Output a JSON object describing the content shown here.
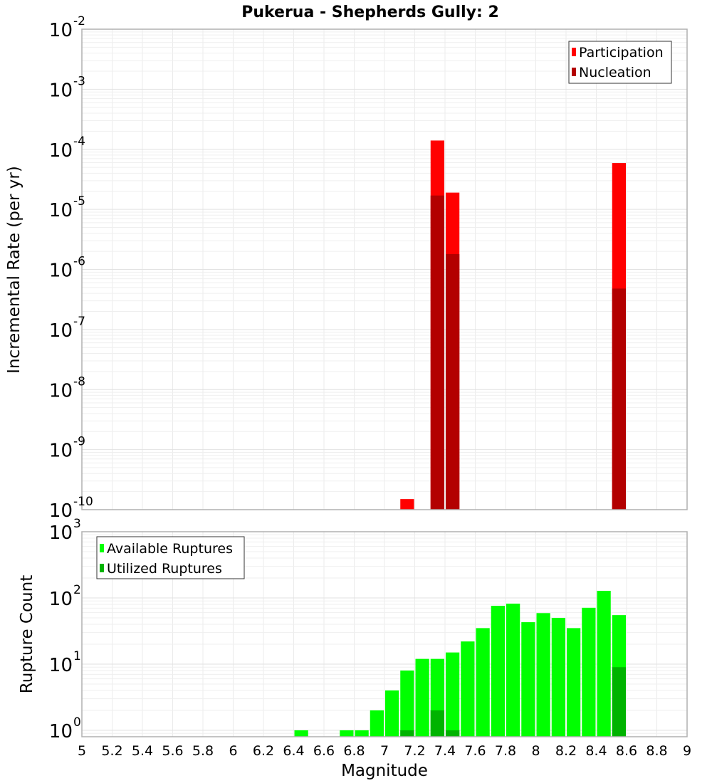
{
  "chart_data": [
    {
      "type": "bar",
      "title": "Pukerua - Shepherds Gully: 2",
      "xlabel": "Magnitude",
      "ylabel": "Incremental Rate (per yr)",
      "yscale": "log",
      "xlim": [
        5,
        9
      ],
      "ylim": [
        1e-10,
        0.01
      ],
      "grid": true,
      "legend_position": "upper right",
      "bin_width": 0.1,
      "yticks": [
        {
          "base": "10",
          "exp": "-2",
          "value": 0.01
        },
        {
          "base": "10",
          "exp": "-3",
          "value": 0.001
        },
        {
          "base": "10",
          "exp": "-4",
          "value": 0.0001
        },
        {
          "base": "10",
          "exp": "-5",
          "value": 1e-05
        },
        {
          "base": "10",
          "exp": "-6",
          "value": 1e-06
        },
        {
          "base": "10",
          "exp": "-7",
          "value": 1e-07
        },
        {
          "base": "10",
          "exp": "-8",
          "value": 1e-08
        },
        {
          "base": "10",
          "exp": "-9",
          "value": 1e-09
        },
        {
          "base": "10",
          "exp": "-10",
          "value": 1e-10
        }
      ],
      "series": [
        {
          "name": "Participation",
          "color": "#ff0000",
          "x": [
            7.15,
            7.35,
            7.45,
            8.55
          ],
          "values": [
            1.5e-10,
            0.00014,
            1.9e-05,
            5.9e-05
          ]
        },
        {
          "name": "Nucleation",
          "color": "#b30000",
          "x": [
            7.35,
            7.45,
            8.55
          ],
          "values": [
            1.7e-05,
            1.8e-06,
            4.8e-07
          ]
        }
      ]
    },
    {
      "type": "bar",
      "title": "",
      "xlabel": "Magnitude",
      "ylabel": "Rupture Count",
      "yscale": "log",
      "xlim": [
        5,
        9
      ],
      "ylim": [
        0.8,
        1000
      ],
      "grid": true,
      "legend_position": "upper left",
      "bin_width": 0.1,
      "yticks": [
        {
          "base": "10",
          "exp": "3",
          "value": 1000
        },
        {
          "base": "10",
          "exp": "2",
          "value": 100
        },
        {
          "base": "10",
          "exp": "1",
          "value": 10
        },
        {
          "base": "10",
          "exp": "0",
          "value": 1
        }
      ],
      "series": [
        {
          "name": "Available Ruptures",
          "color": "#00ff00",
          "x": [
            6.45,
            6.75,
            6.85,
            6.95,
            7.05,
            7.15,
            7.25,
            7.35,
            7.45,
            7.55,
            7.65,
            7.75,
            7.85,
            7.95,
            8.05,
            8.15,
            8.25,
            8.35,
            8.45,
            8.55
          ],
          "values": [
            1,
            1,
            1,
            2,
            4,
            8,
            12,
            12,
            15,
            22,
            35,
            76,
            82,
            43,
            59,
            50,
            35,
            71,
            128,
            55
          ]
        },
        {
          "name": "Utilized Ruptures",
          "color": "#00b300",
          "x": [
            7.15,
            7.35,
            7.45,
            8.55
          ],
          "values": [
            1,
            2,
            1,
            9
          ]
        }
      ]
    }
  ],
  "xticks": [
    "5",
    "5.2",
    "5.4",
    "5.6",
    "5.8",
    "6",
    "6.2",
    "6.4",
    "6.6",
    "6.8",
    "7",
    "7.2",
    "7.4",
    "7.6",
    "7.8",
    "8",
    "8.2",
    "8.4",
    "8.6",
    "8.8",
    "9"
  ]
}
